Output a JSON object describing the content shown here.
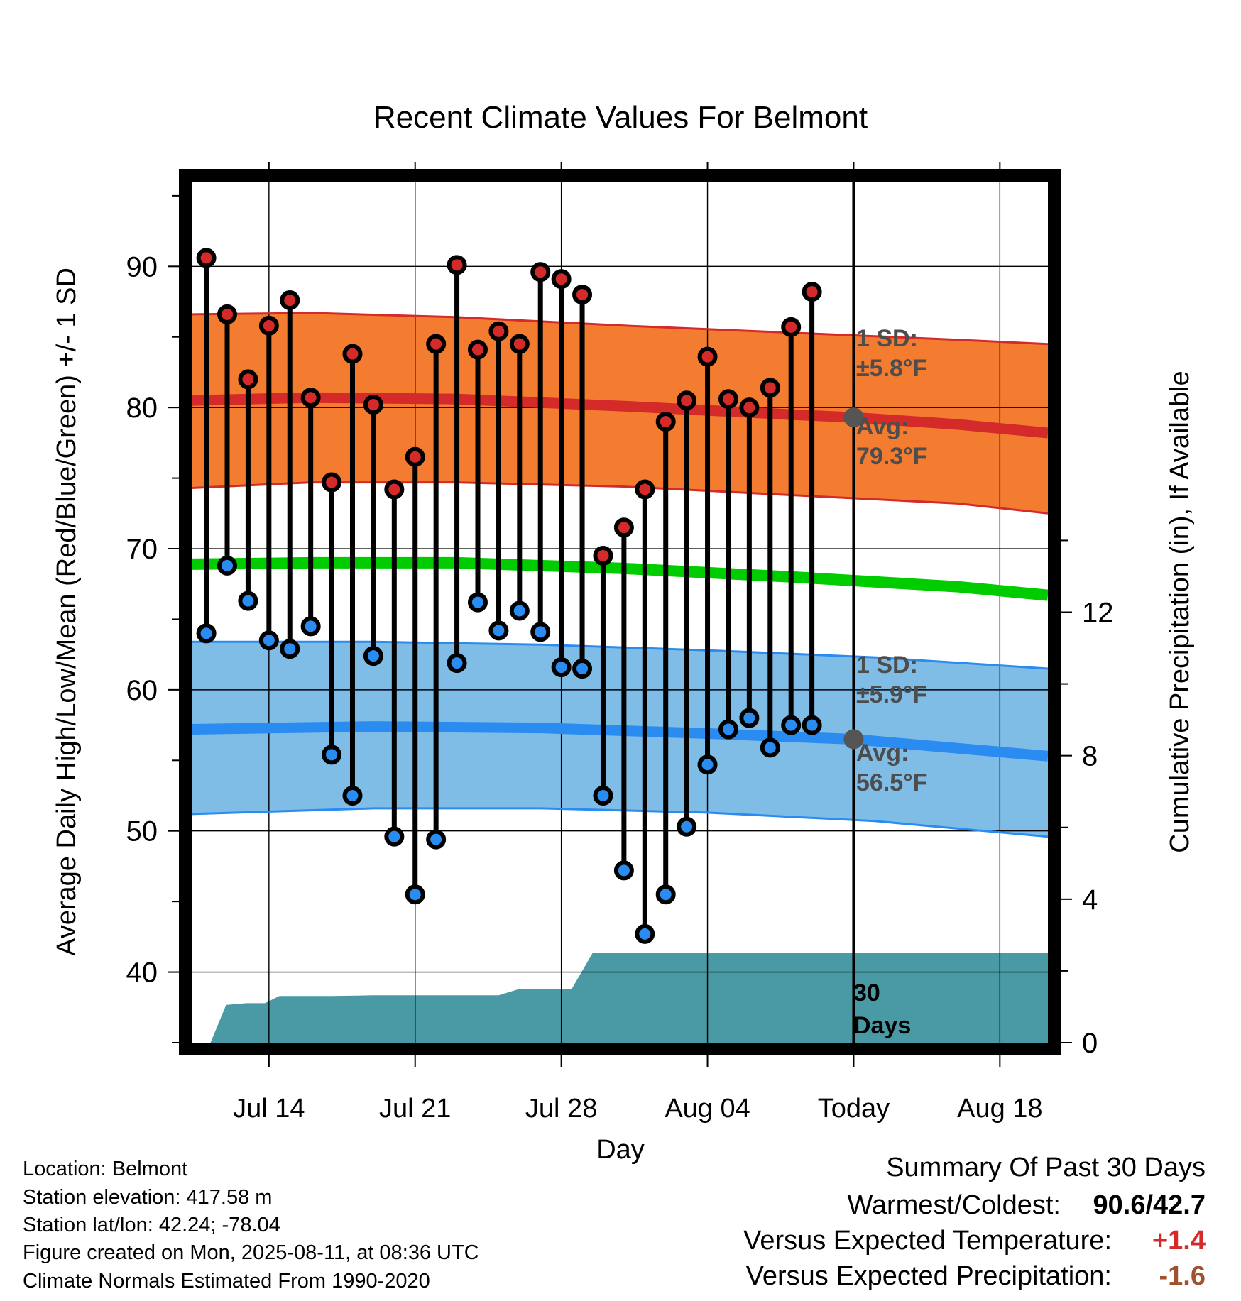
{
  "chart_data": {
    "type": "line",
    "title": "Recent Climate Values For Belmont",
    "xlabel": "Day",
    "ylabel": "Average Daily High/Low/Mean (Red/Blue/Green) +/- 1 SD",
    "y2label": "Cumulative Precipitation (in), If Available",
    "ylim": [
      35,
      96
    ],
    "y2lim": [
      0,
      24
    ],
    "xlim": [
      -0.7,
      40.3
    ],
    "x_ticks": [
      {
        "label": "Jul 14",
        "x": 3
      },
      {
        "label": "Jul 21",
        "x": 10
      },
      {
        "label": "Jul 28",
        "x": 17
      },
      {
        "label": "Aug 04",
        "x": 24
      },
      {
        "label": "Today",
        "x": 31
      },
      {
        "label": "Aug 18",
        "x": 38
      }
    ],
    "y_ticks": [
      40,
      50,
      60,
      70,
      80,
      90
    ],
    "y2_ticks": [
      0,
      4,
      8,
      12
    ],
    "grid": true,
    "normals": {
      "high_upper": [
        [
          -0.7,
          86.6
        ],
        [
          5,
          86.7
        ],
        [
          12,
          86.4
        ],
        [
          20,
          85.8
        ],
        [
          28,
          85.3
        ],
        [
          36,
          84.8
        ],
        [
          40.3,
          84.5
        ]
      ],
      "high_mean": [
        [
          -0.7,
          80.5
        ],
        [
          5,
          80.7
        ],
        [
          12,
          80.6
        ],
        [
          20,
          80.1
        ],
        [
          28,
          79.5
        ],
        [
          31,
          79.3
        ],
        [
          36,
          78.8
        ],
        [
          40.3,
          78.2
        ]
      ],
      "high_lower": [
        [
          -0.7,
          74.3
        ],
        [
          5,
          74.7
        ],
        [
          12,
          74.7
        ],
        [
          20,
          74.4
        ],
        [
          28,
          73.8
        ],
        [
          36,
          73.2
        ],
        [
          40.3,
          72.5
        ]
      ],
      "mean": [
        [
          -0.7,
          68.9
        ],
        [
          5,
          69.0
        ],
        [
          12,
          69.0
        ],
        [
          20,
          68.6
        ],
        [
          28,
          68.0
        ],
        [
          36,
          67.3
        ],
        [
          40.3,
          66.7
        ]
      ],
      "low_upper": [
        [
          -0.7,
          63.4
        ],
        [
          8,
          63.4
        ],
        [
          16,
          63.2
        ],
        [
          24,
          62.8
        ],
        [
          32,
          62.3
        ],
        [
          40.3,
          61.5
        ]
      ],
      "low_mean": [
        [
          -0.7,
          57.2
        ],
        [
          8,
          57.4
        ],
        [
          16,
          57.3
        ],
        [
          24,
          56.9
        ],
        [
          31,
          56.5
        ],
        [
          40.3,
          55.3
        ]
      ],
      "low_lower": [
        [
          -0.7,
          51.2
        ],
        [
          8,
          51.6
        ],
        [
          16,
          51.6
        ],
        [
          24,
          51.3
        ],
        [
          32,
          50.7
        ],
        [
          40.3,
          49.6
        ]
      ]
    },
    "today_mean_high": 79.3,
    "today_mean_low": 56.5,
    "high_annotation": {
      "sd_label": "1 SD:",
      "sd_value": "±5.8°F",
      "avg_label": "Avg:",
      "avg_value": "79.3°F"
    },
    "low_annotation": {
      "sd_label": "1 SD:",
      "sd_value": "±5.9°F",
      "avg_label": "Avg:",
      "avg_value": "56.5°F"
    },
    "period_label_line1": "30",
    "period_label_line2": "Days",
    "daily": [
      {
        "x": 0,
        "high": 90.6,
        "low": 64.0
      },
      {
        "x": 1,
        "high": 86.6,
        "low": 68.8
      },
      {
        "x": 2,
        "high": 82.0,
        "low": 66.3
      },
      {
        "x": 3,
        "high": 85.8,
        "low": 63.5
      },
      {
        "x": 4,
        "high": 87.6,
        "low": 62.9
      },
      {
        "x": 5,
        "high": 80.7,
        "low": 64.5
      },
      {
        "x": 6,
        "high": 74.7,
        "low": 55.4
      },
      {
        "x": 7,
        "high": 83.8,
        "low": 52.5
      },
      {
        "x": 8,
        "high": 80.2,
        "low": 62.4
      },
      {
        "x": 9,
        "high": 74.2,
        "low": 49.6
      },
      {
        "x": 10,
        "high": 76.5,
        "low": 45.5
      },
      {
        "x": 11,
        "high": 84.5,
        "low": 49.4
      },
      {
        "x": 12,
        "high": 90.1,
        "low": 61.9
      },
      {
        "x": 13,
        "high": 84.1,
        "low": 66.2
      },
      {
        "x": 14,
        "high": 85.4,
        "low": 64.2
      },
      {
        "x": 15,
        "high": 84.5,
        "low": 65.6
      },
      {
        "x": 16,
        "high": 89.6,
        "low": 64.1
      },
      {
        "x": 17,
        "high": 89.1,
        "low": 61.6
      },
      {
        "x": 18,
        "high": 88.0,
        "low": 61.5
      },
      {
        "x": 19,
        "high": 69.5,
        "low": 52.5
      },
      {
        "x": 20,
        "high": 71.5,
        "low": 47.2
      },
      {
        "x": 21,
        "high": 74.2,
        "low": 42.7
      },
      {
        "x": 22,
        "high": 79.0,
        "low": 45.5
      },
      {
        "x": 23,
        "high": 80.5,
        "low": 50.3
      },
      {
        "x": 24,
        "high": 83.6,
        "low": 54.7
      },
      {
        "x": 25,
        "high": 80.6,
        "low": 57.2
      },
      {
        "x": 26,
        "high": 80.0,
        "low": 58.0
      },
      {
        "x": 27,
        "high": 81.4,
        "low": 55.9
      },
      {
        "x": 28,
        "high": 85.7,
        "low": 57.5
      },
      {
        "x": 29,
        "high": 88.2,
        "low": 57.5
      }
    ],
    "precipitation": [
      [
        0.2,
        0.0
      ],
      [
        0.95,
        1.05
      ],
      [
        1.9,
        1.1
      ],
      [
        2.8,
        1.1
      ],
      [
        3.5,
        1.3
      ],
      [
        4.2,
        1.3
      ],
      [
        6,
        1.3
      ],
      [
        8,
        1.32
      ],
      [
        10,
        1.32
      ],
      [
        12,
        1.32
      ],
      [
        14,
        1.32
      ],
      [
        15,
        1.5
      ],
      [
        17.5,
        1.5
      ],
      [
        18.5,
        2.5
      ],
      [
        25,
        2.5
      ],
      [
        31,
        2.5
      ],
      [
        40.3,
        2.5
      ]
    ],
    "colors": {
      "high_band": "#f47c30",
      "high_line": "#d42a2a",
      "low_band": "#7fbde6",
      "low_line": "#2a8cf0",
      "mean_line": "#00cc00",
      "high_dot": "#d42a2a",
      "low_dot": "#2a8cf0",
      "precip": "#4a9aa5",
      "avg_marker": "#555555"
    }
  },
  "info": {
    "location": "Location: Belmont",
    "elevation": "Station elevation: 417.58 m",
    "latlon": "Station lat/lon: 42.24; -78.04",
    "created": "Figure created on Mon, 2025-08-11, at 08:36 UTC",
    "normals": "Climate Normals Estimated From 1990-2020"
  },
  "summary": {
    "title": "Summary Of Past 30 Days",
    "warmest_label": "Warmest/Coldest:",
    "warmest_value": "90.6/42.7",
    "temp_label": "Versus Expected Temperature:",
    "temp_value": "+1.4",
    "temp_color": "#d42a2a",
    "precip_label": "Versus Expected Precipitation:",
    "precip_value": "-1.6",
    "precip_color": "#a0522d"
  }
}
